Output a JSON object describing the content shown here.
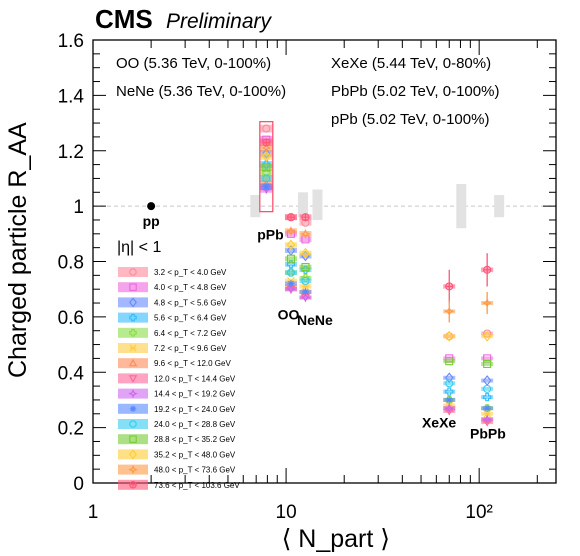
{
  "header": {
    "title": "CMS",
    "subtitle": "Preliminary"
  },
  "chart_data": {
    "type": "scatter",
    "xlabel": "⟨ N_part ⟩",
    "ylabel": "Charged particle R_AA",
    "xscale": "log",
    "xlim": [
      1,
      250
    ],
    "ylim": [
      0,
      1.6
    ],
    "x_ticks": [
      {
        "v": 1,
        "label": "1"
      },
      {
        "v": 10,
        "label": "10"
      },
      {
        "v": 100,
        "label": "10²"
      }
    ],
    "y_ticks": [
      "0",
      "0.2",
      "0.4",
      "0.6",
      "0.8",
      "1",
      "1.2",
      "1.4",
      "1.6"
    ],
    "reference_line": 1,
    "annotations": [
      "OO (5.36 TeV, 0-100%)",
      "NeNe (5.36 TeV, 0-100%)",
      "XeXe (5.44 TeV, 0-80%)",
      "PbPb (5.02 TeV, 0-100%)",
      "pPb (5.02 TeV, 0-100%)"
    ],
    "eta_label": "|η| < 1",
    "pp_point": {
      "label": "pp",
      "x": 2,
      "y": 1.0
    },
    "systems": [
      {
        "name": "pPb",
        "x": 7.9,
        "label_x": 8.3,
        "label_y": 0.88,
        "norm": {
          "lo": 0.96,
          "hi": 1.04
        },
        "values": [
          1.28,
          1.24,
          1.19,
          1.15,
          1.12,
          1.1,
          1.08,
          1.07,
          1.06,
          1.07,
          1.1,
          1.14,
          1.18,
          1.21,
          1.23
        ]
      },
      {
        "name": "OO",
        "x": 10.6,
        "label_x": 10.3,
        "label_y": 0.59,
        "norm": {
          "lo": 0.96,
          "hi": 1.05
        },
        "values": [
          0.96,
          0.9,
          0.84,
          0.79,
          0.76,
          0.73,
          0.71,
          0.7,
          0.7,
          0.72,
          0.76,
          0.81,
          0.86,
          0.91,
          0.96
        ]
      },
      {
        "name": "NeNe",
        "x": 12.6,
        "label_x": 14.1,
        "label_y": 0.57,
        "norm": {
          "lo": 0.95,
          "hi": 1.06
        },
        "values": [
          0.94,
          0.88,
          0.82,
          0.77,
          0.74,
          0.71,
          0.69,
          0.67,
          0.67,
          0.69,
          0.73,
          0.78,
          0.83,
          0.9,
          0.96
        ]
      },
      {
        "name": "XeXe",
        "x": 70,
        "label_x": 62,
        "label_y": 0.2,
        "norm": {
          "lo": 0.92,
          "hi": 1.08
        },
        "values": [
          0.53,
          0.45,
          0.38,
          0.33,
          0.3,
          0.28,
          0.27,
          0.26,
          0.27,
          0.3,
          0.36,
          0.44,
          0.53,
          0.62,
          0.71
        ]
      },
      {
        "name": "PbPb",
        "x": 110,
        "label_x": 111,
        "label_y": 0.16,
        "norm": {
          "lo": 0.96,
          "hi": 1.04
        },
        "values": [
          0.54,
          0.45,
          0.37,
          0.31,
          0.27,
          0.25,
          0.23,
          0.22,
          0.23,
          0.27,
          0.34,
          0.43,
          0.53,
          0.65,
          0.77
        ]
      }
    ],
    "series": [
      {
        "name": "3.2 < p_T < 4.0 GeV",
        "color": "#ff8899",
        "marker": "circle"
      },
      {
        "name": "4.0 < p_T < 4.8 GeV",
        "color": "#ee66dd",
        "marker": "square"
      },
      {
        "name": "4.8 < p_T < 5.6 GeV",
        "color": "#6688ff",
        "marker": "diamond"
      },
      {
        "name": "5.6 < p_T < 6.4 GeV",
        "color": "#33bbff",
        "marker": "cross"
      },
      {
        "name": "6.4 < p_T < 7.2 GeV",
        "color": "#88dd44",
        "marker": "cross"
      },
      {
        "name": "7.2 < p_T < 9.6 GeV",
        "color": "#ffcc44",
        "marker": "xcircle"
      },
      {
        "name": "9.6 < p_T < 12.0 GeV",
        "color": "#ff8855",
        "marker": "triangle-up"
      },
      {
        "name": "12.0 < p_T < 14.4 GeV",
        "color": "#ff6699",
        "marker": "triangle-down"
      },
      {
        "name": "14.4 < p_T < 19.2 GeV",
        "color": "#cc66ee",
        "marker": "star"
      },
      {
        "name": "19.2 < p_T < 24.0 GeV",
        "color": "#5588ff",
        "marker": "asterisk"
      },
      {
        "name": "24.0 < p_T < 28.8 GeV",
        "color": "#33ccee",
        "marker": "circle"
      },
      {
        "name": "28.8 < p_T < 35.2 GeV",
        "color": "#77cc33",
        "marker": "square"
      },
      {
        "name": "35.2 < p_T < 48.0 GeV",
        "color": "#ffcc33",
        "marker": "diamond"
      },
      {
        "name": "48.0 < p_T < 73.6 GeV",
        "color": "#ff9944",
        "marker": "star"
      },
      {
        "name": "73.6 < p_T < 103.6 GeV",
        "color": "#ff5577",
        "marker": "crosscircle"
      }
    ]
  }
}
